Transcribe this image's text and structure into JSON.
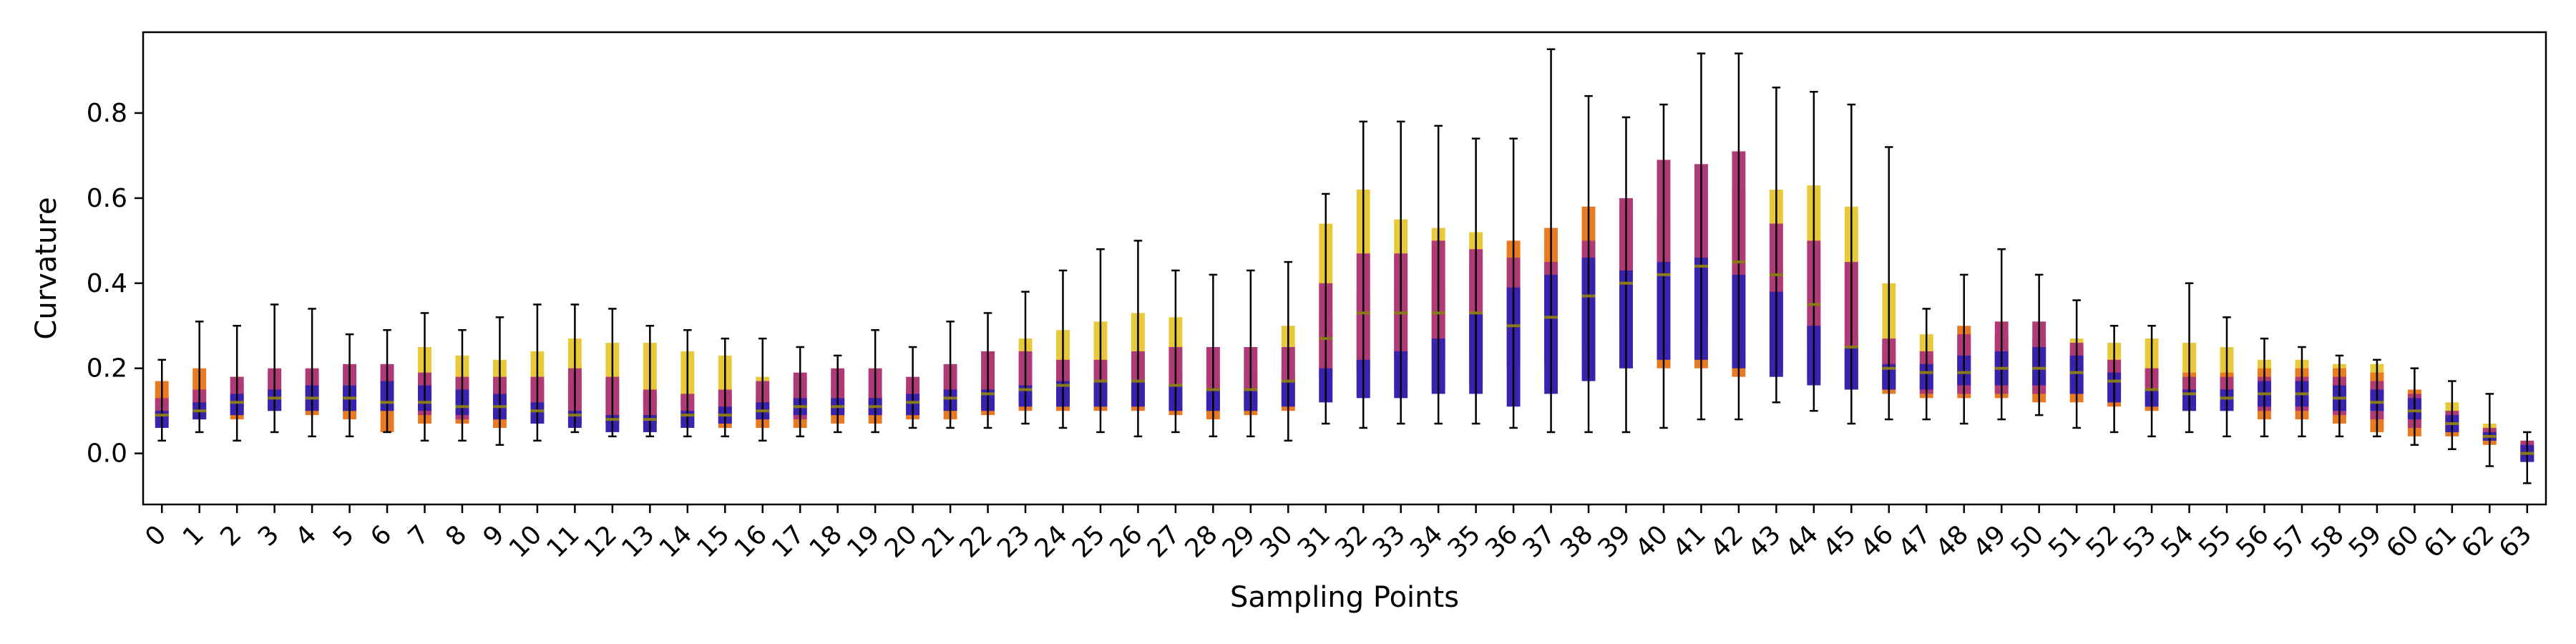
{
  "chart_data": {
    "type": "box",
    "title": "",
    "xlabel": "Sampling Points",
    "ylabel": "Curvature",
    "ylim": [
      -0.12,
      0.99
    ],
    "yticks": [
      0.0,
      0.2,
      0.4,
      0.6,
      0.8
    ],
    "ytick_labels": [
      "0.0",
      "0.2",
      "0.4",
      "0.6",
      "0.8"
    ],
    "categories": [
      "0",
      "1",
      "2",
      "3",
      "4",
      "5",
      "6",
      "7",
      "8",
      "9",
      "10",
      "11",
      "12",
      "13",
      "14",
      "15",
      "16",
      "17",
      "18",
      "19",
      "20",
      "21",
      "22",
      "23",
      "24",
      "25",
      "26",
      "27",
      "28",
      "29",
      "30",
      "31",
      "32",
      "33",
      "34",
      "35",
      "36",
      "37",
      "38",
      "39",
      "40",
      "41",
      "42",
      "43",
      "44",
      "45",
      "46",
      "47",
      "48",
      "49",
      "50",
      "51",
      "52",
      "53",
      "54",
      "55",
      "56",
      "57",
      "58",
      "59",
      "60",
      "61",
      "62",
      "63"
    ],
    "grid": false,
    "legend": "none",
    "series_colors": [
      "#e8c93a",
      "#e87a22",
      "#b03a78",
      "#3a22b0"
    ],
    "series": [
      {
        "color": "#e8c93a",
        "boxes": [
          [
            0.1,
            0.14
          ],
          [
            0.09,
            0.15
          ],
          [
            0.1,
            0.16
          ],
          [
            0.11,
            0.16
          ],
          [
            0.1,
            0.17
          ],
          [
            0.1,
            0.17
          ],
          [
            0.1,
            0.18
          ],
          [
            0.11,
            0.25
          ],
          [
            0.1,
            0.23
          ],
          [
            0.1,
            0.22
          ],
          [
            0.1,
            0.24
          ],
          [
            0.1,
            0.27
          ],
          [
            0.1,
            0.26
          ],
          [
            0.1,
            0.26
          ],
          [
            0.11,
            0.24
          ],
          [
            0.11,
            0.23
          ],
          [
            0.1,
            0.18
          ],
          [
            0.1,
            0.18
          ],
          [
            0.1,
            0.18
          ],
          [
            0.08,
            0.14
          ],
          [
            0.1,
            0.16
          ],
          [
            0.1,
            0.18
          ],
          [
            0.12,
            0.2
          ],
          [
            0.14,
            0.27
          ],
          [
            0.15,
            0.29
          ],
          [
            0.16,
            0.31
          ],
          [
            0.16,
            0.33
          ],
          [
            0.15,
            0.32
          ],
          [
            0.14,
            0.25
          ],
          [
            0.13,
            0.22
          ],
          [
            0.14,
            0.3
          ],
          [
            0.2,
            0.54
          ],
          [
            0.22,
            0.62
          ],
          [
            0.22,
            0.55
          ],
          [
            0.22,
            0.53
          ],
          [
            0.22,
            0.52
          ],
          [
            0.2,
            0.48
          ],
          [
            0.2,
            0.5
          ],
          [
            0.2,
            0.5
          ],
          [
            0.22,
            0.58
          ],
          [
            0.25,
            0.6
          ],
          [
            0.25,
            0.62
          ],
          [
            0.25,
            0.62
          ],
          [
            0.28,
            0.62
          ],
          [
            0.25,
            0.63
          ],
          [
            0.2,
            0.58
          ],
          [
            0.16,
            0.4
          ],
          [
            0.15,
            0.28
          ],
          [
            0.15,
            0.27
          ],
          [
            0.14,
            0.28
          ],
          [
            0.14,
            0.27
          ],
          [
            0.14,
            0.27
          ],
          [
            0.14,
            0.26
          ],
          [
            0.13,
            0.27
          ],
          [
            0.12,
            0.26
          ],
          [
            0.11,
            0.25
          ],
          [
            0.1,
            0.22
          ],
          [
            0.1,
            0.22
          ],
          [
            0.1,
            0.21
          ],
          [
            0.1,
            0.21
          ],
          [
            0.08,
            0.15
          ],
          [
            0.05,
            0.12
          ],
          [
            0.03,
            0.07
          ],
          [
            -0.01,
            0.03
          ]
        ]
      },
      {
        "color": "#e87a22",
        "boxes": [
          [
            0.07,
            0.17
          ],
          [
            0.08,
            0.2
          ],
          [
            0.08,
            0.18
          ],
          [
            0.1,
            0.19
          ],
          [
            0.09,
            0.19
          ],
          [
            0.08,
            0.2
          ],
          [
            0.05,
            0.2
          ],
          [
            0.07,
            0.18
          ],
          [
            0.07,
            0.17
          ],
          [
            0.06,
            0.17
          ],
          [
            0.07,
            0.16
          ],
          [
            0.07,
            0.17
          ],
          [
            0.07,
            0.17
          ],
          [
            0.07,
            0.14
          ],
          [
            0.06,
            0.14
          ],
          [
            0.06,
            0.14
          ],
          [
            0.06,
            0.14
          ],
          [
            0.06,
            0.14
          ],
          [
            0.07,
            0.15
          ],
          [
            0.07,
            0.14
          ],
          [
            0.08,
            0.15
          ],
          [
            0.08,
            0.16
          ],
          [
            0.09,
            0.17
          ],
          [
            0.1,
            0.2
          ],
          [
            0.1,
            0.2
          ],
          [
            0.1,
            0.2
          ],
          [
            0.1,
            0.21
          ],
          [
            0.09,
            0.2
          ],
          [
            0.08,
            0.18
          ],
          [
            0.09,
            0.19
          ],
          [
            0.1,
            0.2
          ],
          [
            0.12,
            0.32
          ],
          [
            0.14,
            0.38
          ],
          [
            0.15,
            0.4
          ],
          [
            0.15,
            0.4
          ],
          [
            0.16,
            0.45
          ],
          [
            0.2,
            0.5
          ],
          [
            0.2,
            0.53
          ],
          [
            0.22,
            0.58
          ],
          [
            0.2,
            0.55
          ],
          [
            0.2,
            0.55
          ],
          [
            0.2,
            0.5
          ],
          [
            0.18,
            0.5
          ],
          [
            0.18,
            0.42
          ],
          [
            0.17,
            0.4
          ],
          [
            0.15,
            0.28
          ],
          [
            0.14,
            0.25
          ],
          [
            0.13,
            0.24
          ],
          [
            0.13,
            0.3
          ],
          [
            0.13,
            0.28
          ],
          [
            0.12,
            0.27
          ],
          [
            0.12,
            0.25
          ],
          [
            0.11,
            0.22
          ],
          [
            0.1,
            0.2
          ],
          [
            0.1,
            0.19
          ],
          [
            0.1,
            0.19
          ],
          [
            0.08,
            0.2
          ],
          [
            0.08,
            0.2
          ],
          [
            0.07,
            0.2
          ],
          [
            0.05,
            0.19
          ],
          [
            0.04,
            0.15
          ],
          [
            0.04,
            0.1
          ],
          [
            0.02,
            0.06
          ],
          [
            -0.02,
            0.02
          ]
        ]
      },
      {
        "color": "#b03a78",
        "boxes": [
          [
            0.08,
            0.13
          ],
          [
            0.08,
            0.15
          ],
          [
            0.09,
            0.18
          ],
          [
            0.1,
            0.2
          ],
          [
            0.1,
            0.2
          ],
          [
            0.1,
            0.21
          ],
          [
            0.1,
            0.21
          ],
          [
            0.09,
            0.19
          ],
          [
            0.08,
            0.18
          ],
          [
            0.08,
            0.18
          ],
          [
            0.08,
            0.18
          ],
          [
            0.07,
            0.2
          ],
          [
            0.07,
            0.18
          ],
          [
            0.07,
            0.15
          ],
          [
            0.07,
            0.14
          ],
          [
            0.07,
            0.15
          ],
          [
            0.08,
            0.17
          ],
          [
            0.08,
            0.19
          ],
          [
            0.09,
            0.2
          ],
          [
            0.09,
            0.2
          ],
          [
            0.09,
            0.18
          ],
          [
            0.1,
            0.21
          ],
          [
            0.11,
            0.24
          ],
          [
            0.12,
            0.24
          ],
          [
            0.12,
            0.22
          ],
          [
            0.12,
            0.22
          ],
          [
            0.12,
            0.24
          ],
          [
            0.1,
            0.25
          ],
          [
            0.1,
            0.25
          ],
          [
            0.1,
            0.25
          ],
          [
            0.12,
            0.25
          ],
          [
            0.18,
            0.4
          ],
          [
            0.2,
            0.47
          ],
          [
            0.22,
            0.47
          ],
          [
            0.22,
            0.5
          ],
          [
            0.22,
            0.48
          ],
          [
            0.22,
            0.46
          ],
          [
            0.22,
            0.45
          ],
          [
            0.25,
            0.5
          ],
          [
            0.3,
            0.6
          ],
          [
            0.3,
            0.69
          ],
          [
            0.3,
            0.68
          ],
          [
            0.25,
            0.71
          ],
          [
            0.22,
            0.54
          ],
          [
            0.17,
            0.5
          ],
          [
            0.15,
            0.45
          ],
          [
            0.15,
            0.27
          ],
          [
            0.14,
            0.24
          ],
          [
            0.14,
            0.28
          ],
          [
            0.14,
            0.31
          ],
          [
            0.14,
            0.31
          ],
          [
            0.14,
            0.26
          ],
          [
            0.12,
            0.22
          ],
          [
            0.11,
            0.2
          ],
          [
            0.1,
            0.18
          ],
          [
            0.1,
            0.18
          ],
          [
            0.1,
            0.18
          ],
          [
            0.1,
            0.18
          ],
          [
            0.09,
            0.18
          ],
          [
            0.08,
            0.17
          ],
          [
            0.06,
            0.14
          ],
          [
            0.05,
            0.1
          ],
          [
            0.03,
            0.06
          ],
          [
            -0.02,
            0.03
          ]
        ]
      },
      {
        "color": "#3a22b0",
        "boxes": [
          [
            0.06,
            0.1
          ],
          [
            0.08,
            0.12
          ],
          [
            0.09,
            0.14
          ],
          [
            0.1,
            0.15
          ],
          [
            0.1,
            0.16
          ],
          [
            0.1,
            0.16
          ],
          [
            0.1,
            0.17
          ],
          [
            0.1,
            0.16
          ],
          [
            0.09,
            0.15
          ],
          [
            0.08,
            0.14
          ],
          [
            0.07,
            0.12
          ],
          [
            0.06,
            0.1
          ],
          [
            0.05,
            0.09
          ],
          [
            0.05,
            0.09
          ],
          [
            0.06,
            0.1
          ],
          [
            0.07,
            0.11
          ],
          [
            0.08,
            0.12
          ],
          [
            0.09,
            0.13
          ],
          [
            0.09,
            0.13
          ],
          [
            0.09,
            0.13
          ],
          [
            0.09,
            0.14
          ],
          [
            0.1,
            0.15
          ],
          [
            0.1,
            0.15
          ],
          [
            0.11,
            0.16
          ],
          [
            0.11,
            0.17
          ],
          [
            0.11,
            0.17
          ],
          [
            0.11,
            0.17
          ],
          [
            0.1,
            0.16
          ],
          [
            0.1,
            0.15
          ],
          [
            0.1,
            0.15
          ],
          [
            0.11,
            0.17
          ],
          [
            0.12,
            0.2
          ],
          [
            0.13,
            0.22
          ],
          [
            0.13,
            0.24
          ],
          [
            0.14,
            0.27
          ],
          [
            0.14,
            0.33
          ],
          [
            0.11,
            0.39
          ],
          [
            0.14,
            0.42
          ],
          [
            0.17,
            0.46
          ],
          [
            0.2,
            0.43
          ],
          [
            0.22,
            0.45
          ],
          [
            0.22,
            0.46
          ],
          [
            0.2,
            0.42
          ],
          [
            0.18,
            0.38
          ],
          [
            0.16,
            0.3
          ],
          [
            0.15,
            0.25
          ],
          [
            0.15,
            0.21
          ],
          [
            0.15,
            0.21
          ],
          [
            0.16,
            0.23
          ],
          [
            0.16,
            0.24
          ],
          [
            0.16,
            0.25
          ],
          [
            0.14,
            0.23
          ],
          [
            0.12,
            0.19
          ],
          [
            0.11,
            0.15
          ],
          [
            0.1,
            0.15
          ],
          [
            0.1,
            0.15
          ],
          [
            0.11,
            0.17
          ],
          [
            0.11,
            0.17
          ],
          [
            0.1,
            0.16
          ],
          [
            0.1,
            0.15
          ],
          [
            0.08,
            0.13
          ],
          [
            0.05,
            0.09
          ],
          [
            0.03,
            0.05
          ],
          [
            -0.02,
            0.02
          ]
        ]
      }
    ],
    "medians": [
      0.09,
      0.1,
      0.12,
      0.13,
      0.13,
      0.13,
      0.12,
      0.12,
      0.11,
      0.11,
      0.1,
      0.09,
      0.08,
      0.08,
      0.09,
      0.09,
      0.1,
      0.11,
      0.11,
      0.11,
      0.12,
      0.13,
      0.14,
      0.15,
      0.16,
      0.17,
      0.17,
      0.16,
      0.15,
      0.15,
      0.17,
      0.27,
      0.33,
      0.33,
      0.33,
      0.33,
      0.3,
      0.32,
      0.37,
      0.4,
      0.42,
      0.44,
      0.45,
      0.42,
      0.35,
      0.25,
      0.2,
      0.19,
      0.19,
      0.2,
      0.2,
      0.19,
      0.17,
      0.15,
      0.14,
      0.13,
      0.14,
      0.14,
      0.13,
      0.12,
      0.1,
      0.07,
      0.04,
      0.0
    ],
    "whisker_low": [
      0.03,
      0.05,
      0.03,
      0.05,
      0.04,
      0.04,
      0.05,
      0.03,
      0.03,
      0.02,
      0.03,
      0.05,
      0.04,
      0.04,
      0.04,
      0.04,
      0.03,
      0.04,
      0.05,
      0.05,
      0.06,
      0.06,
      0.06,
      0.07,
      0.06,
      0.05,
      0.04,
      0.05,
      0.04,
      0.04,
      0.03,
      0.07,
      0.06,
      0.07,
      0.07,
      0.07,
      0.06,
      0.05,
      0.05,
      0.05,
      0.06,
      0.08,
      0.08,
      0.12,
      0.1,
      0.07,
      0.08,
      0.08,
      0.07,
      0.08,
      0.09,
      0.06,
      0.05,
      0.04,
      0.05,
      0.04,
      0.04,
      0.04,
      0.04,
      0.04,
      0.02,
      0.01,
      -0.03,
      -0.07
    ],
    "whisker_high": [
      0.22,
      0.31,
      0.3,
      0.35,
      0.34,
      0.28,
      0.29,
      0.33,
      0.29,
      0.32,
      0.35,
      0.35,
      0.34,
      0.3,
      0.29,
      0.27,
      0.27,
      0.25,
      0.23,
      0.29,
      0.25,
      0.31,
      0.33,
      0.38,
      0.43,
      0.48,
      0.5,
      0.43,
      0.42,
      0.43,
      0.45,
      0.61,
      0.78,
      0.78,
      0.77,
      0.74,
      0.74,
      0.95,
      0.84,
      0.79,
      0.82,
      0.94,
      0.94,
      0.86,
      0.85,
      0.82,
      0.72,
      0.34,
      0.42,
      0.48,
      0.42,
      0.36,
      0.3,
      0.3,
      0.4,
      0.32,
      0.27,
      0.25,
      0.23,
      0.22,
      0.2,
      0.17,
      0.14,
      0.05
    ]
  }
}
